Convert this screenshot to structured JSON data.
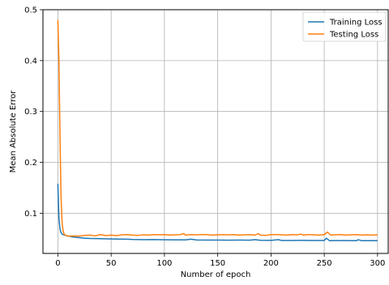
{
  "chart_data": {
    "type": "line",
    "title": "",
    "xlabel": "Number of epoch",
    "ylabel": "Mean Absolute Error",
    "xlim": [
      -14,
      310
    ],
    "ylim": [
      0.021,
      0.5
    ],
    "x_ticks": [
      0,
      50,
      100,
      150,
      200,
      250,
      300
    ],
    "y_ticks": [
      0.1,
      0.2,
      0.3,
      0.4,
      0.5
    ],
    "grid": true,
    "legend": {
      "position": "top-right"
    },
    "series": [
      {
        "name": "Training Loss",
        "color": "#1f77b4",
        "points": [
          [
            0,
            0.158
          ],
          [
            1,
            0.09
          ],
          [
            2,
            0.068
          ],
          [
            3,
            0.062
          ],
          [
            4,
            0.059
          ],
          [
            6,
            0.057
          ],
          [
            8,
            0.056
          ],
          [
            10,
            0.055
          ],
          [
            15,
            0.053
          ],
          [
            20,
            0.052
          ],
          [
            25,
            0.051
          ],
          [
            30,
            0.0505
          ],
          [
            40,
            0.05
          ],
          [
            50,
            0.0495
          ],
          [
            60,
            0.049
          ],
          [
            65,
            0.049
          ],
          [
            70,
            0.0485
          ],
          [
            80,
            0.048
          ],
          [
            90,
            0.0482
          ],
          [
            100,
            0.0478
          ],
          [
            110,
            0.0476
          ],
          [
            120,
            0.0476
          ],
          [
            125,
            0.049
          ],
          [
            130,
            0.0474
          ],
          [
            140,
            0.0472
          ],
          [
            150,
            0.0472
          ],
          [
            160,
            0.047
          ],
          [
            170,
            0.0472
          ],
          [
            180,
            0.047
          ],
          [
            185,
            0.048
          ],
          [
            190,
            0.0468
          ],
          [
            200,
            0.0466
          ],
          [
            207,
            0.048
          ],
          [
            210,
            0.0464
          ],
          [
            220,
            0.0465
          ],
          [
            230,
            0.0466
          ],
          [
            240,
            0.0464
          ],
          [
            250,
            0.0464
          ],
          [
            252,
            0.051
          ],
          [
            255,
            0.046
          ],
          [
            260,
            0.0462
          ],
          [
            270,
            0.0462
          ],
          [
            280,
            0.046
          ],
          [
            282,
            0.048
          ],
          [
            285,
            0.046
          ],
          [
            290,
            0.046
          ],
          [
            300,
            0.046
          ]
        ]
      },
      {
        "name": "Testing Loss",
        "color": "#ff7f0e",
        "points": [
          [
            0,
            0.48
          ],
          [
            1,
            0.4
          ],
          [
            2,
            0.25
          ],
          [
            3,
            0.13
          ],
          [
            4,
            0.08
          ],
          [
            5,
            0.065
          ],
          [
            6,
            0.058
          ],
          [
            8,
            0.056
          ],
          [
            10,
            0.055
          ],
          [
            15,
            0.0555
          ],
          [
            20,
            0.055
          ],
          [
            25,
            0.0565
          ],
          [
            30,
            0.057
          ],
          [
            35,
            0.0555
          ],
          [
            40,
            0.058
          ],
          [
            45,
            0.056
          ],
          [
            50,
            0.057
          ],
          [
            55,
            0.056
          ],
          [
            60,
            0.0575
          ],
          [
            65,
            0.058
          ],
          [
            70,
            0.057
          ],
          [
            75,
            0.0565
          ],
          [
            80,
            0.0575
          ],
          [
            85,
            0.057
          ],
          [
            90,
            0.058
          ],
          [
            95,
            0.0575
          ],
          [
            100,
            0.058
          ],
          [
            105,
            0.057
          ],
          [
            110,
            0.0575
          ],
          [
            115,
            0.058
          ],
          [
            118,
            0.06
          ],
          [
            120,
            0.057
          ],
          [
            125,
            0.058
          ],
          [
            130,
            0.0575
          ],
          [
            135,
            0.058
          ],
          [
            140,
            0.058
          ],
          [
            145,
            0.057
          ],
          [
            150,
            0.0575
          ],
          [
            155,
            0.058
          ],
          [
            160,
            0.0575
          ],
          [
            165,
            0.058
          ],
          [
            170,
            0.057
          ],
          [
            175,
            0.0575
          ],
          [
            180,
            0.058
          ],
          [
            185,
            0.057
          ],
          [
            188,
            0.06
          ],
          [
            190,
            0.057
          ],
          [
            195,
            0.0565
          ],
          [
            200,
            0.058
          ],
          [
            205,
            0.058
          ],
          [
            210,
            0.0575
          ],
          [
            215,
            0.057
          ],
          [
            220,
            0.058
          ],
          [
            225,
            0.0575
          ],
          [
            228,
            0.059
          ],
          [
            230,
            0.057
          ],
          [
            235,
            0.058
          ],
          [
            240,
            0.0575
          ],
          [
            245,
            0.057
          ],
          [
            250,
            0.058
          ],
          [
            253,
            0.063
          ],
          [
            256,
            0.057
          ],
          [
            260,
            0.0575
          ],
          [
            265,
            0.058
          ],
          [
            270,
            0.057
          ],
          [
            275,
            0.0575
          ],
          [
            280,
            0.058
          ],
          [
            285,
            0.057
          ],
          [
            290,
            0.0575
          ],
          [
            295,
            0.057
          ],
          [
            300,
            0.0575
          ]
        ]
      }
    ]
  }
}
